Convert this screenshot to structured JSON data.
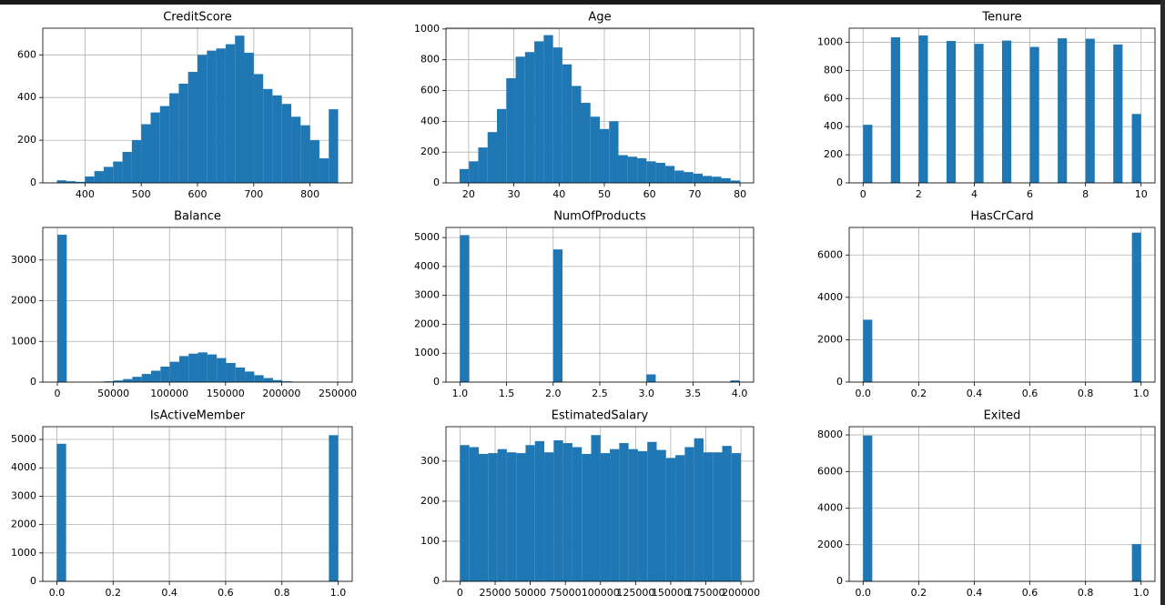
{
  "chart_data": [
    {
      "type": "histogram",
      "title": "CreditScore",
      "color": "#1f77b4",
      "grid": true,
      "bins": [
        350,
        366.7,
        383.3,
        400,
        416.7,
        433.3,
        450,
        466.7,
        483.3,
        500,
        516.7,
        533.3,
        550,
        566.7,
        583.3,
        600,
        616.7,
        633.3,
        650,
        666.7,
        683.3,
        700,
        716.7,
        733.3,
        750,
        766.7,
        783.3,
        800,
        816.7,
        833.3,
        850
      ],
      "values": [
        12,
        8,
        5,
        30,
        55,
        75,
        100,
        145,
        200,
        275,
        330,
        360,
        420,
        465,
        520,
        600,
        620,
        630,
        650,
        690,
        610,
        510,
        440,
        410,
        370,
        310,
        270,
        200,
        115,
        345
      ],
      "xlim": [
        325,
        875
      ],
      "ylim": [
        0,
        725
      ],
      "xticks": [
        400,
        500,
        600,
        700,
        800
      ],
      "yticks": [
        0,
        200,
        400,
        600
      ]
    },
    {
      "type": "histogram",
      "title": "Age",
      "color": "#1f77b4",
      "grid": true,
      "bins": [
        18,
        20.07,
        22.13,
        24.2,
        26.27,
        28.33,
        30.4,
        32.47,
        34.53,
        36.6,
        38.67,
        40.73,
        42.8,
        44.87,
        46.93,
        49,
        51.07,
        53.13,
        55.2,
        57.27,
        59.33,
        61.4,
        63.47,
        65.53,
        67.6,
        69.67,
        71.73,
        73.8,
        75.87,
        77.93,
        80
      ],
      "values": [
        90,
        140,
        230,
        330,
        480,
        680,
        820,
        850,
        920,
        960,
        880,
        770,
        630,
        520,
        430,
        350,
        400,
        180,
        170,
        160,
        140,
        130,
        110,
        80,
        70,
        60,
        45,
        40,
        30,
        15
      ],
      "xlim": [
        15,
        83
      ],
      "ylim": [
        0,
        1005
      ],
      "xticks": [
        20,
        30,
        40,
        50,
        60,
        70,
        80
      ],
      "yticks": [
        0,
        200,
        400,
        600,
        800,
        1000
      ]
    },
    {
      "type": "histogram",
      "title": "Tenure",
      "color": "#1f77b4",
      "grid": true,
      "bins": [
        0,
        0.333,
        0.667,
        1,
        1.333,
        1.667,
        2,
        2.333,
        2.667,
        3,
        3.333,
        3.667,
        4,
        4.333,
        4.667,
        5,
        5.333,
        5.667,
        6,
        6.333,
        6.667,
        7,
        7.333,
        7.667,
        8,
        8.333,
        8.667,
        9,
        9.333,
        9.667,
        10
      ],
      "values": [
        413,
        0,
        0,
        1035,
        0,
        0,
        1048,
        0,
        0,
        1009,
        0,
        0,
        989,
        0,
        0,
        1012,
        0,
        0,
        967,
        0,
        0,
        1028,
        0,
        0,
        1025,
        0,
        0,
        984,
        0,
        490
      ],
      "xlim": [
        -0.5,
        10.5
      ],
      "ylim": [
        0,
        1100
      ],
      "xticks": [
        0,
        2,
        4,
        6,
        8,
        10
      ],
      "yticks": [
        0,
        200,
        400,
        600,
        800,
        1000
      ]
    },
    {
      "type": "histogram",
      "title": "Balance",
      "color": "#1f77b4",
      "grid": true,
      "bins": [
        0,
        8363,
        16727,
        25090,
        33453,
        41816,
        50180,
        58543,
        66906,
        75270,
        83633,
        91996,
        100359,
        108723,
        117086,
        125449,
        133813,
        142176,
        150539,
        158902,
        167266,
        175629,
        183992,
        192356,
        200719,
        209082,
        217445,
        225809,
        234172,
        242535,
        250898
      ],
      "values": [
        3620,
        0,
        0,
        0,
        5,
        20,
        40,
        75,
        130,
        200,
        280,
        380,
        500,
        640,
        700,
        730,
        680,
        590,
        470,
        360,
        260,
        170,
        100,
        50,
        20,
        8,
        2,
        0,
        0,
        2
      ],
      "xlim": [
        -13000,
        263000
      ],
      "ylim": [
        0,
        3800
      ],
      "xticks": [
        0,
        50000,
        100000,
        150000,
        200000,
        250000
      ],
      "yticks": [
        0,
        1000,
        2000,
        3000
      ]
    },
    {
      "type": "histogram",
      "title": "NumOfProducts",
      "color": "#1f77b4",
      "grid": true,
      "bins": [
        1,
        1.1,
        1.2,
        1.3,
        1.4,
        1.5,
        1.6,
        1.7,
        1.8,
        1.9,
        2,
        2.1,
        2.2,
        2.3,
        2.4,
        2.5,
        2.6,
        2.7,
        2.8,
        2.9,
        3,
        3.1,
        3.2,
        3.3,
        3.4,
        3.5,
        3.6,
        3.7,
        3.8,
        3.9,
        4
      ],
      "values": [
        5084,
        0,
        0,
        0,
        0,
        0,
        0,
        0,
        0,
        0,
        4590,
        0,
        0,
        0,
        0,
        0,
        0,
        0,
        0,
        0,
        266,
        0,
        0,
        0,
        0,
        0,
        0,
        0,
        0,
        60
      ],
      "xlim": [
        0.85,
        4.15
      ],
      "ylim": [
        0,
        5350
      ],
      "xticks": [
        {
          "value": 1,
          "label": "1.0"
        },
        {
          "value": 1.5,
          "label": "1.5"
        },
        {
          "value": 2,
          "label": "2.0"
        },
        {
          "value": 2.5,
          "label": "2.5"
        },
        {
          "value": 3,
          "label": "3.0"
        },
        {
          "value": 3.5,
          "label": "3.5"
        },
        {
          "value": 4,
          "label": "4.0"
        }
      ],
      "yticks": [
        0,
        1000,
        2000,
        3000,
        4000,
        5000
      ]
    },
    {
      "type": "histogram",
      "title": "HasCrCard",
      "color": "#1f77b4",
      "grid": true,
      "bins": [
        0,
        0.033,
        0.067,
        0.1,
        0.133,
        0.167,
        0.2,
        0.233,
        0.267,
        0.3,
        0.333,
        0.367,
        0.4,
        0.433,
        0.467,
        0.5,
        0.533,
        0.567,
        0.6,
        0.633,
        0.667,
        0.7,
        0.733,
        0.767,
        0.8,
        0.833,
        0.867,
        0.9,
        0.933,
        0.967,
        1
      ],
      "values": [
        2945,
        0,
        0,
        0,
        0,
        0,
        0,
        0,
        0,
        0,
        0,
        0,
        0,
        0,
        0,
        0,
        0,
        0,
        0,
        0,
        0,
        0,
        0,
        0,
        0,
        0,
        0,
        0,
        0,
        7055
      ],
      "xlim": [
        -0.05,
        1.05
      ],
      "ylim": [
        0,
        7300
      ],
      "xticks": [
        {
          "value": 0,
          "label": "0.0"
        },
        {
          "value": 0.2,
          "label": "0.2"
        },
        {
          "value": 0.4,
          "label": "0.4"
        },
        {
          "value": 0.6,
          "label": "0.6"
        },
        {
          "value": 0.8,
          "label": "0.8"
        },
        {
          "value": 1,
          "label": "1.0"
        }
      ],
      "yticks": [
        0,
        2000,
        4000,
        6000
      ]
    },
    {
      "type": "histogram",
      "title": "IsActiveMember",
      "color": "#1f77b4",
      "grid": true,
      "bins": [
        0,
        0.033,
        0.067,
        0.1,
        0.133,
        0.167,
        0.2,
        0.233,
        0.267,
        0.3,
        0.333,
        0.367,
        0.4,
        0.433,
        0.467,
        0.5,
        0.533,
        0.567,
        0.6,
        0.633,
        0.667,
        0.7,
        0.733,
        0.767,
        0.8,
        0.833,
        0.867,
        0.9,
        0.933,
        0.967,
        1
      ],
      "values": [
        4849,
        0,
        0,
        0,
        0,
        0,
        0,
        0,
        0,
        0,
        0,
        0,
        0,
        0,
        0,
        0,
        0,
        0,
        0,
        0,
        0,
        0,
        0,
        0,
        0,
        0,
        0,
        0,
        0,
        5151
      ],
      "xlim": [
        -0.05,
        1.05
      ],
      "ylim": [
        0,
        5450
      ],
      "xticks": [
        {
          "value": 0,
          "label": "0.0"
        },
        {
          "value": 0.2,
          "label": "0.2"
        },
        {
          "value": 0.4,
          "label": "0.4"
        },
        {
          "value": 0.6,
          "label": "0.6"
        },
        {
          "value": 0.8,
          "label": "0.8"
        },
        {
          "value": 1,
          "label": "1.0"
        }
      ],
      "yticks": [
        0,
        1000,
        2000,
        3000,
        4000,
        5000
      ]
    },
    {
      "type": "histogram",
      "title": "EstimatedSalary",
      "color": "#1f77b4",
      "grid": true,
      "bins": [
        12,
        6678,
        13344,
        20010,
        26676,
        33342,
        40008,
        46674,
        53340,
        60006,
        66672,
        73338,
        80004,
        86670,
        93336,
        100002,
        106668,
        113334,
        120000,
        126666,
        133332,
        139998,
        146664,
        153330,
        159996,
        166662,
        173328,
        179994,
        186660,
        193326,
        199992
      ],
      "values": [
        340,
        335,
        318,
        320,
        330,
        322,
        320,
        340,
        350,
        322,
        352,
        345,
        335,
        318,
        365,
        320,
        330,
        345,
        330,
        325,
        348,
        328,
        308,
        315,
        335,
        357,
        322,
        322,
        338,
        320
      ],
      "xlim": [
        -10000,
        209000
      ],
      "ylim": [
        0,
        386
      ],
      "xticks": [
        0,
        25000,
        50000,
        75000,
        100000,
        125000,
        150000,
        175000,
        200000
      ],
      "yticks": [
        0,
        100,
        200,
        300
      ]
    },
    {
      "type": "histogram",
      "title": "Exited",
      "color": "#1f77b4",
      "grid": true,
      "bins": [
        0,
        0.033,
        0.067,
        0.1,
        0.133,
        0.167,
        0.2,
        0.233,
        0.267,
        0.3,
        0.333,
        0.367,
        0.4,
        0.433,
        0.467,
        0.5,
        0.533,
        0.567,
        0.6,
        0.633,
        0.667,
        0.7,
        0.733,
        0.767,
        0.8,
        0.833,
        0.867,
        0.9,
        0.933,
        0.967,
        1
      ],
      "values": [
        7963,
        0,
        0,
        0,
        0,
        0,
        0,
        0,
        0,
        0,
        0,
        0,
        0,
        0,
        0,
        0,
        0,
        0,
        0,
        0,
        0,
        0,
        0,
        0,
        0,
        0,
        0,
        0,
        0,
        2037
      ],
      "xlim": [
        -0.05,
        1.05
      ],
      "ylim": [
        0,
        8450
      ],
      "xticks": [
        {
          "value": 0,
          "label": "0.0"
        },
        {
          "value": 0.2,
          "label": "0.2"
        },
        {
          "value": 0.4,
          "label": "0.4"
        },
        {
          "value": 0.6,
          "label": "0.6"
        },
        {
          "value": 0.8,
          "label": "0.8"
        },
        {
          "value": 1,
          "label": "1.0"
        }
      ],
      "yticks": [
        0,
        2000,
        4000,
        6000,
        8000
      ]
    }
  ]
}
